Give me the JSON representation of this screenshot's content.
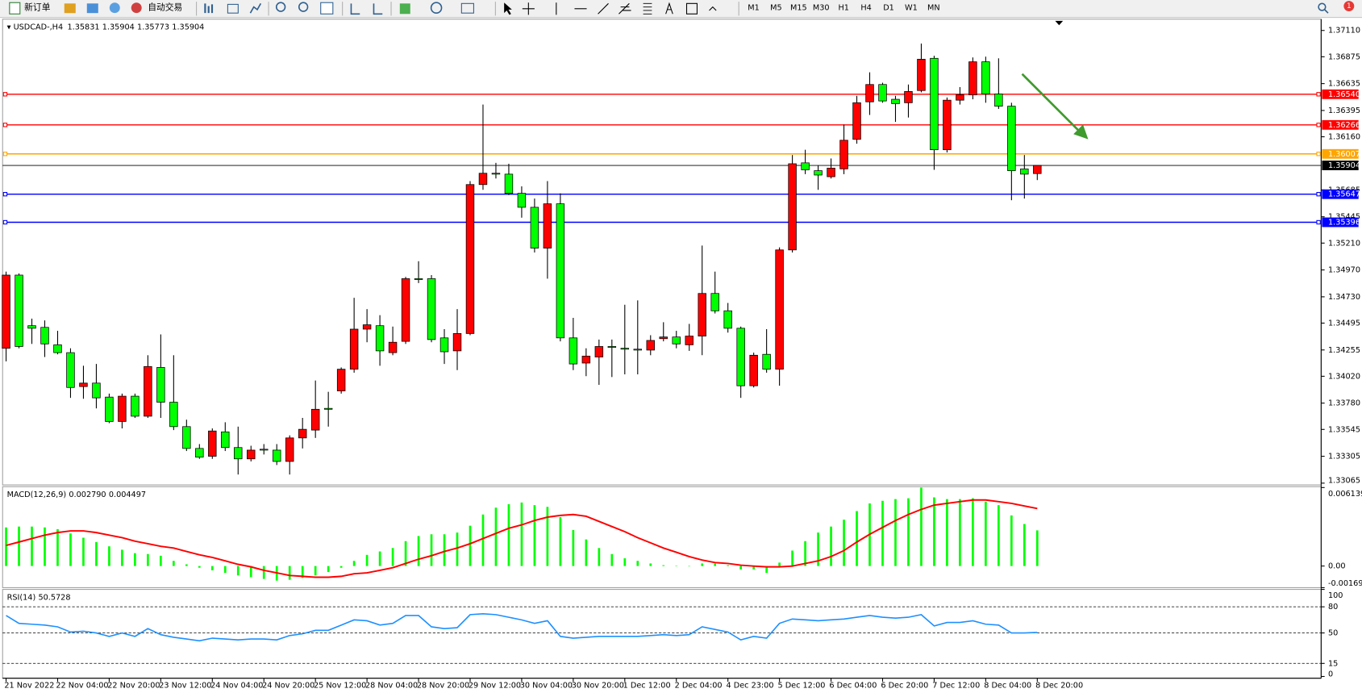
{
  "toolbar": {
    "new_order": "新订单",
    "auto_trading": "自动交易",
    "timeframes": [
      "M1",
      "M5",
      "M15",
      "M30",
      "H1",
      "H4",
      "D1",
      "W1",
      "MN"
    ],
    "notification": "1"
  },
  "chart_data": [
    {
      "type": "candlestick",
      "title": "USDCAD-,H4",
      "categories": [
        "21 Nov 2022",
        null,
        null,
        null,
        "22 Nov 04:00",
        null,
        null,
        null,
        "22 Nov 20:00",
        null,
        null,
        null,
        "23 Nov 12:00",
        null,
        null,
        null,
        "24 Nov 04:00",
        null,
        null,
        null,
        "24 Nov 20:00",
        null,
        null,
        null,
        "25 Nov 12:00",
        null,
        null,
        null,
        "28 Nov 04:00",
        null,
        null,
        null,
        "28 Nov 20:00",
        null,
        null,
        null,
        "29 Nov 12:00",
        null,
        null,
        null,
        "30 Nov 04:00",
        null,
        null,
        null,
        "30 Nov 20:00",
        null,
        null,
        null,
        "1 Dec 12:00",
        null,
        null,
        null,
        "2 Dec 04:00",
        null,
        null,
        null,
        "4 Dec 23:00",
        null,
        null,
        null,
        "5 Dec 12:00",
        null,
        null,
        null,
        "6 Dec 04:00",
        null,
        null,
        null,
        "6 Dec 20:00",
        null,
        null,
        null,
        "7 Dec 12:00",
        null,
        null,
        null,
        "8 Dec 04:00",
        null,
        null,
        null,
        "8 Dec 20:00"
      ],
      "open": [
        1.3427,
        1.34924,
        1.34472,
        1.34457,
        1.34301,
        1.34231,
        1.33928,
        1.33959,
        1.33834,
        1.33616,
        1.33842,
        1.33663,
        1.34099,
        1.33788,
        1.3357,
        1.33375,
        1.33305,
        1.33523,
        1.33383,
        1.33282,
        1.33368,
        1.3336,
        1.33259,
        1.33469,
        1.33539,
        1.33733,
        1.33889,
        1.34083,
        1.34441,
        1.34472,
        1.34231,
        1.34332,
        1.34892,
        1.34892,
        1.34363,
        1.34247,
        1.34402,
        1.35733,
        1.35834,
        1.35826,
        1.35655,
        1.3553,
        1.35165,
        1.35561,
        1.34363,
        1.34138,
        1.34192,
        1.34286,
        1.3427,
        1.34262,
        1.34254,
        1.34356,
        1.34371,
        1.34301,
        1.34379,
        1.3476,
        1.34605,
        1.34449,
        1.33935,
        1.34216,
        1.34083,
        1.35149,
        1.35927,
        1.35857,
        1.35803,
        1.35873,
        1.36137,
        1.36472,
        1.36627,
        1.36495,
        1.36464,
        1.36573,
        1.36861,
        1.36044,
        1.36487,
        1.36534,
        1.3683,
        1.36542,
        1.36433,
        1.35873,
        1.35831
      ],
      "high": [
        1.34955,
        1.34939,
        1.34535,
        1.34519,
        1.34426,
        1.3427,
        1.34114,
        1.3413,
        1.33865,
        1.33865,
        1.33865,
        1.34208,
        1.34394,
        1.34208,
        1.33632,
        1.33414,
        1.33554,
        1.33609,
        1.3357,
        1.33399,
        1.33414,
        1.33414,
        1.33492,
        1.33648,
        1.33982,
        1.33881,
        1.34099,
        1.34721,
        1.3462,
        1.34566,
        1.34464,
        1.34908,
        1.35048,
        1.34924,
        1.34441,
        1.3462,
        1.35764,
        1.36448,
        1.35927,
        1.35919,
        1.35717,
        1.35608,
        1.35764,
        1.35655,
        1.34542,
        1.3427,
        1.34348,
        1.34348,
        1.34659,
        1.34698,
        1.34387,
        1.34503,
        1.34426,
        1.34488,
        1.35188,
        1.34955,
        1.34675,
        1.34464,
        1.34231,
        1.34441,
        1.35172,
        1.35997,
        1.36044,
        1.35904,
        1.35966,
        1.36269,
        1.36526,
        1.36736,
        1.36643,
        1.36526,
        1.36627,
        1.36993,
        1.36884,
        1.36511,
        1.36604,
        1.36869,
        1.36876,
        1.36861,
        1.36464,
        1.35997,
        1.35904
      ],
      "low": [
        1.34153,
        1.3427,
        1.34309,
        1.34192,
        1.34216,
        1.33827,
        1.33819,
        1.33733,
        1.33601,
        1.33554,
        1.33648,
        1.33648,
        1.33648,
        1.33539,
        1.33352,
        1.33282,
        1.33282,
        1.33352,
        1.33142,
        1.33259,
        1.33321,
        1.33227,
        1.33142,
        1.33375,
        1.33469,
        1.3357,
        1.33865,
        1.34052,
        1.34324,
        1.34114,
        1.34208,
        1.34309,
        1.34853,
        1.34324,
        1.3413,
        1.34075,
        1.34387,
        1.35686,
        1.35787,
        1.35639,
        1.35437,
        1.35126,
        1.34892,
        1.34332,
        1.34075,
        1.34021,
        1.33943,
        1.34013,
        1.34037,
        1.34037,
        1.34208,
        1.34332,
        1.3427,
        1.34247,
        1.34208,
        1.34581,
        1.3441,
        1.33827,
        1.3392,
        1.34052,
        1.33935,
        1.35126,
        1.35826,
        1.35686,
        1.35787,
        1.35826,
        1.36098,
        1.36355,
        1.36464,
        1.36293,
        1.36332,
        1.36557,
        1.35865,
        1.3602,
        1.36448,
        1.36495,
        1.36464,
        1.36409,
        1.35593,
        1.35608,
        1.35773
      ],
      "close": [
        1.34924,
        1.34286,
        1.34449,
        1.34309,
        1.34231,
        1.3392,
        1.33959,
        1.33827,
        1.33616,
        1.33842,
        1.33663,
        1.34107,
        1.33788,
        1.3357,
        1.33375,
        1.33297,
        1.33531,
        1.33383,
        1.33282,
        1.3336,
        1.3336,
        1.33259,
        1.33469,
        1.33546,
        1.33725,
        1.33725,
        1.34083,
        1.34441,
        1.3448,
        1.34247,
        1.34324,
        1.34892,
        1.34885,
        1.34348,
        1.34239,
        1.34402,
        1.35733,
        1.35834,
        1.35826,
        1.35655,
        1.3553,
        1.35165,
        1.35561,
        1.34363,
        1.3413,
        1.342,
        1.34286,
        1.34278,
        1.34262,
        1.34254,
        1.3434,
        1.34371,
        1.34309,
        1.34379,
        1.3476,
        1.34605,
        1.34449,
        1.33935,
        1.34208,
        1.34083,
        1.35149,
        1.35919,
        1.35865,
        1.35818,
        1.3588,
        1.36129,
        1.36464,
        1.36627,
        1.3648,
        1.36456,
        1.36565,
        1.36853,
        1.36044,
        1.36487,
        1.36534,
        1.3683,
        1.36542,
        1.36433,
        1.35857,
        1.35826,
        1.35904
      ],
      "up_color": "#ff0000",
      "down_color": "#00ff00",
      "bid_color": "#000000",
      "ylim": [
        1.33049,
        1.37211
      ],
      "yticks": [
        {
          "value": 1.3711,
          "label": "1.37110"
        },
        1.36875,
        1.36635,
        1.36395,
        {
          "value": 1.3616,
          "label": "1.36160"
        },
        1.35685,
        1.35445,
        {
          "value": 1.3521,
          "label": "1.35210"
        },
        {
          "value": 1.3497,
          "label": "1.34970"
        },
        {
          "value": 1.3473,
          "label": "1.34730"
        },
        1.34495,
        1.34255,
        {
          "value": 1.3402,
          "label": "1.34020"
        },
        {
          "value": 1.3378,
          "label": "1.33780"
        },
        1.33545,
        1.33305,
        1.33065
      ],
      "levels": [
        {
          "value": 1.3654,
          "label": "1.36540",
          "color": "#ff0000"
        },
        {
          "value": 1.36266,
          "color": "#ff0000"
        },
        {
          "value": 1.36007,
          "color": "#ffa500"
        },
        {
          "value": 1.35647,
          "color": "#0000ff"
        },
        {
          "value": 1.35396,
          "color": "#0000ff"
        }
      ]
    },
    {
      "type": "macd",
      "title": "MACD(12,26,9)",
      "series": [
        {
          "type": "bar",
          "color": "#00ff00",
          "values": [
            0.00302,
            0.003087,
            0.003087,
            0.00302,
            0.002885,
            0.00255,
            0.002214,
            0.001879,
            0.001543,
            0.001275,
            0.001007,
            0.000939,
            0.000805,
            0.000403,
            0.000134,
            -0.000134,
            -0.000336,
            -0.000537,
            -0.000738,
            -0.000872,
            -0.001007,
            -0.001141,
            -0.001074,
            -0.000939,
            -0.000738,
            -0.00047,
            -0.000134,
            0.000403,
            0.000872,
            0.001141,
            0.001409,
            0.001946,
            0.002349,
            0.002483,
            0.002483,
            0.002617,
            0.003154,
            0.004026,
            0.004563,
            0.004831,
            0.004965,
            0.004764,
            0.00463,
            0.003825,
            0.002818,
            0.00208,
            0.001409,
            0.000939,
            0.000604,
            0.000403,
            0.000201,
            6.7e-05,
            3e-05,
            -3e-05,
            0.000201,
            0.000201,
            6.7e-05,
            -0.000268,
            -0.000268,
            -0.000537,
            0.000268,
            0.001208,
            0.001946,
            0.002617,
            0.003087,
            0.003623,
            0.004294,
            0.004898,
            0.0051,
            0.005234,
            0.005301,
            0.006139,
            0.005368,
            0.005234,
            0.005234,
            0.005301,
            0.005033,
            0.004764,
            0.003959,
            0.003288,
            0.00279
          ],
          "value_labels": [
            null,
            null,
            null,
            null,
            null,
            null,
            null,
            null,
            null,
            null,
            null,
            null,
            null,
            null,
            null,
            null,
            null,
            null,
            null,
            null,
            null,
            null,
            null,
            null,
            null,
            null,
            null,
            null,
            null,
            null,
            null,
            null,
            null,
            null,
            null,
            null,
            null,
            null,
            null,
            null,
            null,
            null,
            null,
            null,
            null,
            null,
            null,
            null,
            null,
            null,
            null,
            null,
            null,
            null,
            null,
            null,
            null,
            null,
            null,
            null,
            null,
            null,
            null,
            null,
            null,
            null,
            null,
            null,
            null,
            null,
            null,
            null,
            null,
            null,
            null,
            null,
            null,
            null,
            null,
            null,
            "0.002790"
          ]
        },
        {
          "type": "line",
          "color": "#ff0000",
          "values": [
            0.00161,
            0.001879,
            0.002147,
            0.002416,
            0.002617,
            0.002751,
            0.002751,
            0.002617,
            0.002416,
            0.002214,
            0.001946,
            0.001745,
            0.001543,
            0.001409,
            0.001141,
            0.000872,
            0.000671,
            0.000403,
            0.000134,
            -6.7e-05,
            -0.000336,
            -0.000537,
            -0.000738,
            -0.000805,
            -0.000872,
            -0.000872,
            -0.000805,
            -0.000604,
            -0.000537,
            -0.000336,
            -0.000134,
            0.000201,
            0.000537,
            0.000805,
            0.001141,
            0.001409,
            0.001745,
            0.002147,
            0.00255,
            0.002952,
            0.003221,
            0.003556,
            0.003825,
            0.003959,
            0.004026,
            0.003892,
            0.003489,
            0.003087,
            0.002684,
            0.002214,
            0.001812,
            0.001409,
            0.001074,
            0.000738,
            0.00047,
            0.000268,
            0.000201,
            6.7e-05,
            0,
            -6.7e-05,
            -6.7e-05,
            0,
            0.000201,
            0.000403,
            0.000738,
            0.001208,
            0.001879,
            0.002483,
            0.00302,
            0.003556,
            0.004026,
            0.004429,
            0.004764,
            0.004898,
            0.005033,
            0.005167,
            0.005167,
            0.005033,
            0.004898,
            0.004697,
            0.004497
          ]
        }
      ],
      "ylim": [
        -0.001692,
        0.006139
      ],
      "yticks": [
        0.006139,
        {
          "value": 0,
          "label": "0.00"
        },
        -0.001692
      ]
    },
    {
      "type": "rsi",
      "title": "RSI(14)",
      "series": [
        {
          "type": "line",
          "color": "#1e90ff",
          "values": [
            70,
            61,
            60,
            59,
            57,
            51,
            52,
            50,
            46,
            50,
            46,
            55,
            48,
            45,
            43,
            41,
            44,
            43,
            42,
            43,
            43,
            42,
            47,
            49,
            53,
            53,
            59,
            65,
            64,
            59,
            61,
            70,
            70,
            57,
            55,
            56,
            71,
            72,
            71,
            68,
            65,
            61,
            64,
            46,
            44,
            45,
            46,
            46,
            46,
            46,
            47,
            48,
            47,
            48,
            57,
            54,
            51,
            42,
            46,
            44,
            61,
            66,
            65,
            64,
            65,
            66,
            68,
            70,
            68,
            67,
            68,
            71,
            58,
            62,
            62,
            64,
            60,
            59,
            50,
            50,
            50.5728
          ]
        }
      ],
      "ylim": [
        0,
        100
      ],
      "yticks": [
        100,
        80,
        50,
        15,
        0
      ],
      "levels": [
        80,
        50,
        15
      ]
    }
  ]
}
